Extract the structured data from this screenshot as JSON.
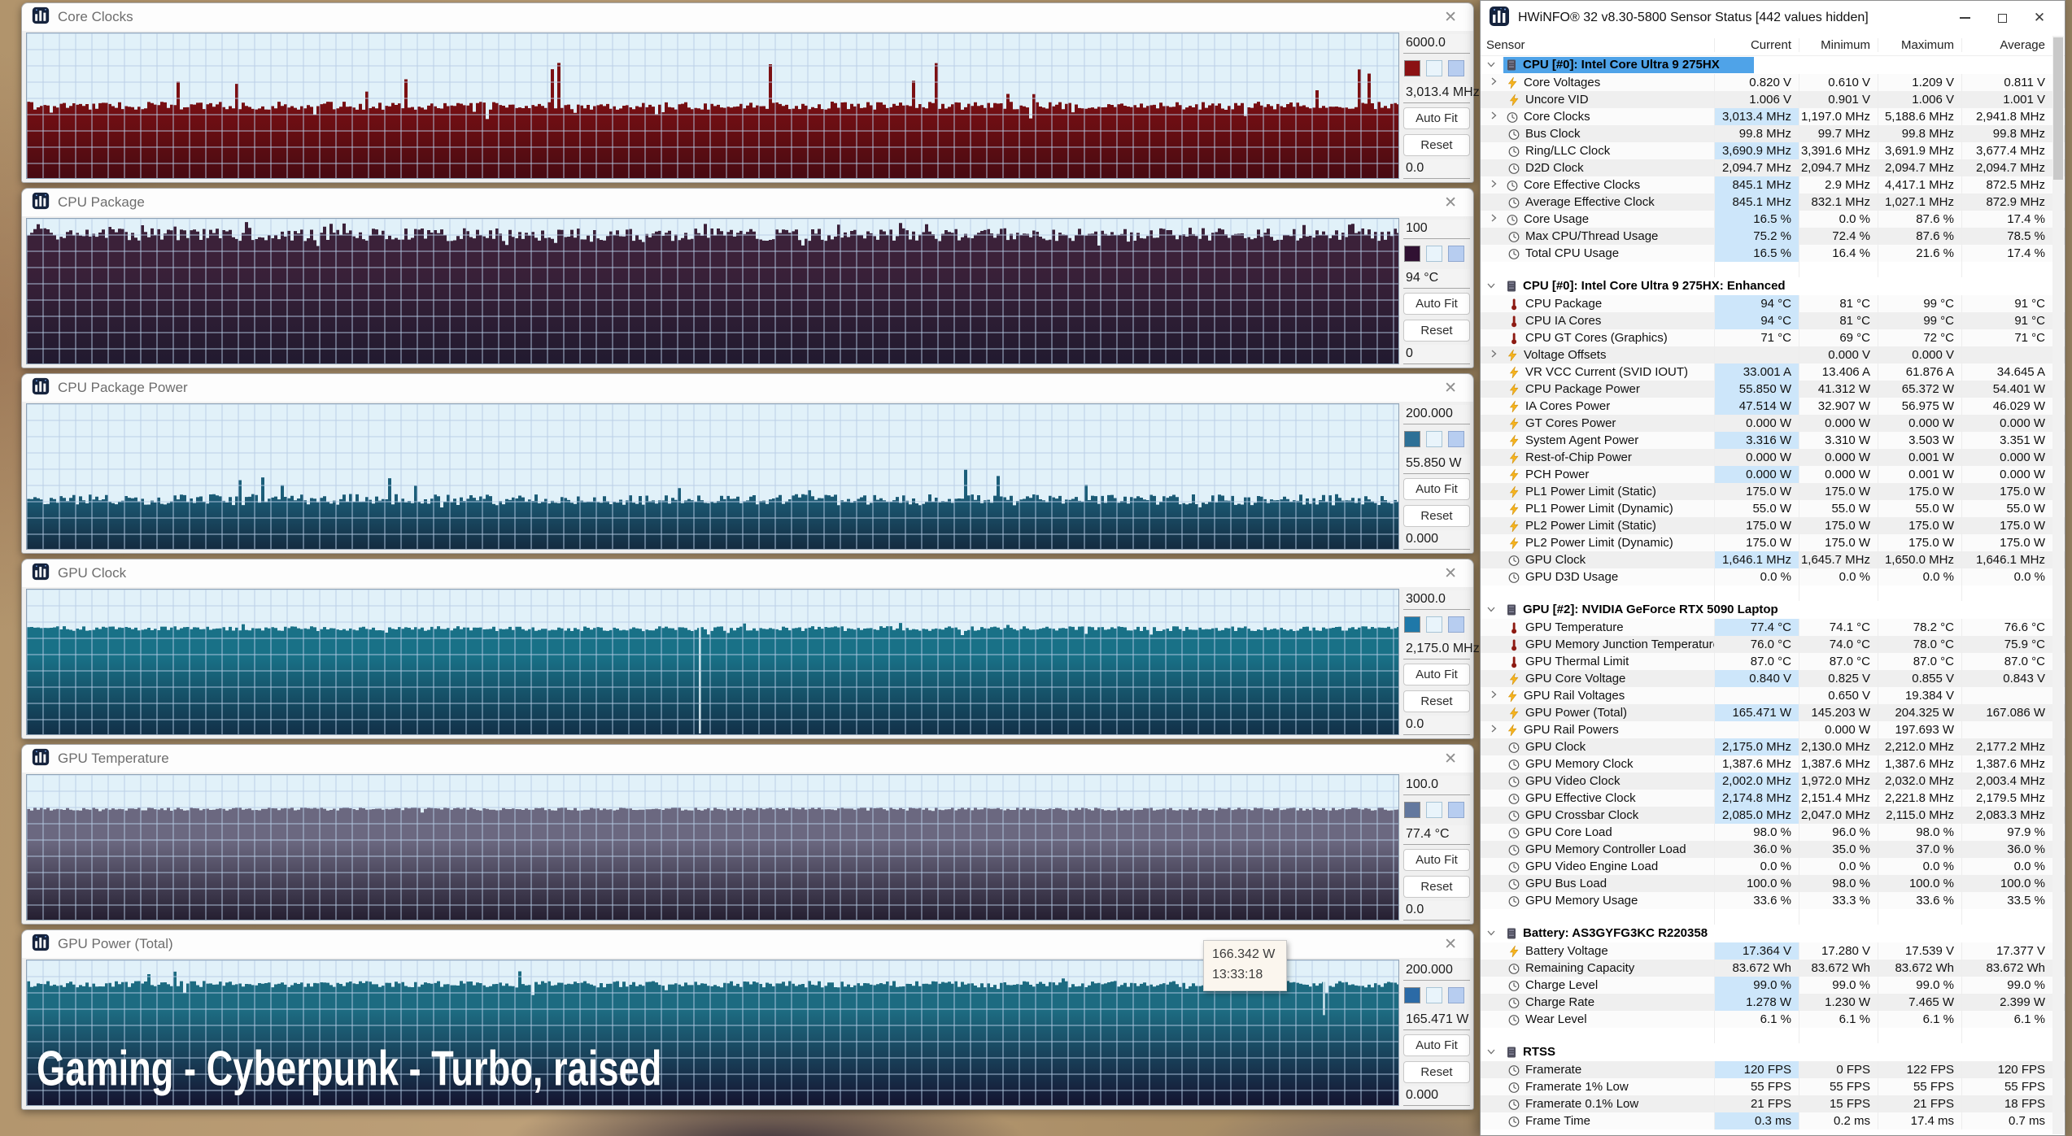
{
  "graph_style": {
    "bg": "#e1f1f9",
    "grid": "#b7cde6",
    "grid_step": 20
  },
  "panel": {
    "autofit_label": "Auto Fit",
    "reset_label": "Reset",
    "close_glyph": "✕"
  },
  "graph_windows": [
    {
      "title": "Core Clocks",
      "scale_max": "6000.0",
      "current": "3,013.4 MHz",
      "scale_min": "0.0",
      "swatch": "#8b1113",
      "fill_top": "#7c1013",
      "fill_bottom": "#470a12",
      "seed": 7,
      "level": 0.5,
      "jitter": 5,
      "spikes": {
        "count": 14,
        "min": 0.08,
        "max": 0.36
      },
      "notches": {
        "count": 10,
        "depth": 0.06
      },
      "dips": []
    },
    {
      "title": "CPU Package",
      "scale_max": "100",
      "current": "94 °C",
      "scale_min": "0",
      "swatch": "#301132",
      "fill_top": "#3b2139",
      "fill_bottom": "#211a2f",
      "seed": 13,
      "level": 0.11,
      "jitter": 8,
      "spikes": {
        "count": 26,
        "min": 0.02,
        "max": 0.09
      },
      "notches": {
        "count": 14,
        "depth": 0.05
      },
      "dips": []
    },
    {
      "title": "CPU Package Power",
      "scale_max": "200.000",
      "current": "55.850 W",
      "scale_min": "0.000",
      "swatch": "#2e7096",
      "fill_top": "#1c5f7a",
      "fill_bottom": "#142b40",
      "seed": 21,
      "level": 0.66,
      "jitter": 7,
      "spikes": {
        "count": 10,
        "min": 0.06,
        "max": 0.22
      },
      "notches": {
        "count": 4,
        "depth": 0.04
      },
      "dips": []
    },
    {
      "title": "GPU Clock",
      "scale_max": "3000.0",
      "current": "2,175.0 MHz",
      "scale_min": "0.0",
      "swatch": "#1f78a8",
      "fill_top": "#197187",
      "fill_bottom": "#123048",
      "seed": 29,
      "level": 0.27,
      "jitter": 3,
      "spikes": {
        "count": 6,
        "min": 0.01,
        "max": 0.04
      },
      "notches": {
        "count": 6,
        "depth": 0.03
      },
      "dips": [
        {
          "x": 0.49,
          "len": 0
        }
      ]
    },
    {
      "title": "GPU Temperature",
      "scale_max": "100.0",
      "current": "77.4 °C",
      "scale_min": "0.0",
      "swatch": "#63789e",
      "fill_top": "#6b6880",
      "fill_bottom": "#251f31",
      "seed": 37,
      "level": 0.235,
      "jitter": 2,
      "spikes": {
        "count": 0,
        "min": 0,
        "max": 0
      },
      "notches": {
        "count": 4,
        "depth": 0.02
      },
      "dips": []
    },
    {
      "title": "GPU Power (Total)",
      "scale_max": "200.000",
      "current": "165.471 W",
      "scale_min": "0.000",
      "swatch": "#2b6aa6",
      "fill_top": "#1d6b81",
      "fill_bottom": "#141430",
      "seed": 45,
      "level": 0.165,
      "jitter": 4,
      "spikes": {
        "count": 4,
        "min": 0.03,
        "max": 0.1
      },
      "notches": {
        "count": 6,
        "depth": 0.05
      },
      "dips": [
        {
          "x": 0.945,
          "len": 48
        }
      ],
      "overlay_text": "Gaming - Cyberpunk - Turbo, raised",
      "tooltip": {
        "value": "166.342 W",
        "time": "13:33:18"
      }
    }
  ],
  "hwinfo": {
    "title": "HWiNFO® 32 v8.30-5800 Sensor Status [442 values hidden]",
    "columns": [
      "Sensor",
      "Current",
      "Minimum",
      "Maximum",
      "Average"
    ],
    "sections": [
      {
        "name": "CPU [#0]: Intel Core Ultra 9 275HX",
        "selected": true,
        "alt_offset": 0,
        "rows": [
          {
            "label": "Core Voltages",
            "icon": "bolt",
            "expandable": true,
            "values": [
              "0.820 V",
              "0.610 V",
              "1.209 V",
              "0.811 V"
            ]
          },
          {
            "label": "Uncore VID",
            "icon": "bolt",
            "values": [
              "1.006 V",
              "0.901 V",
              "1.006 V",
              "1.001 V"
            ]
          },
          {
            "label": "Core Clocks",
            "icon": "clock",
            "expandable": true,
            "hl": true,
            "values": [
              "3,013.4 MHz",
              "1,197.0 MHz",
              "5,188.6 MHz",
              "2,941.8 MHz"
            ]
          },
          {
            "label": "Bus Clock",
            "icon": "clock",
            "values": [
              "99.8 MHz",
              "99.7 MHz",
              "99.8 MHz",
              "99.8 MHz"
            ]
          },
          {
            "label": "Ring/LLC Clock",
            "icon": "clock",
            "hl": true,
            "values": [
              "3,690.9 MHz",
              "3,391.6 MHz",
              "3,691.9 MHz",
              "3,677.4 MHz"
            ]
          },
          {
            "label": "D2D Clock",
            "icon": "clock",
            "values": [
              "2,094.7 MHz",
              "2,094.7 MHz",
              "2,094.7 MHz",
              "2,094.7 MHz"
            ]
          },
          {
            "label": "Core Effective Clocks",
            "icon": "clock",
            "expandable": true,
            "hl": true,
            "values": [
              "845.1 MHz",
              "2.9 MHz",
              "4,417.1 MHz",
              "872.5 MHz"
            ]
          },
          {
            "label": "Average Effective Clock",
            "icon": "clock",
            "hl": true,
            "values": [
              "845.1 MHz",
              "832.1 MHz",
              "1,027.1 MHz",
              "872.9 MHz"
            ]
          },
          {
            "label": "Core Usage",
            "icon": "clock",
            "expandable": true,
            "hl": true,
            "values": [
              "16.5 %",
              "0.0 %",
              "87.6 %",
              "17.4 %"
            ]
          },
          {
            "label": "Max CPU/Thread Usage",
            "icon": "clock",
            "hl": true,
            "values": [
              "75.2 %",
              "72.4 %",
              "87.6 %",
              "78.5 %"
            ]
          },
          {
            "label": "Total CPU Usage",
            "icon": "clock",
            "hl": true,
            "values": [
              "16.5 %",
              "16.4 %",
              "21.6 %",
              "17.4 %"
            ]
          }
        ]
      },
      {
        "name": "CPU [#0]: Intel Core Ultra 9 275HX: Enhanced",
        "alt_offset": 0,
        "rows": [
          {
            "label": "CPU Package",
            "icon": "temp",
            "hl": true,
            "values": [
              "94 °C",
              "81 °C",
              "99 °C",
              "91 °C"
            ]
          },
          {
            "label": "CPU IA Cores",
            "icon": "temp",
            "hl": true,
            "values": [
              "94 °C",
              "81 °C",
              "99 °C",
              "91 °C"
            ]
          },
          {
            "label": "CPU GT Cores (Graphics)",
            "icon": "temp",
            "values": [
              "71 °C",
              "69 °C",
              "72 °C",
              "71 °C"
            ]
          },
          {
            "label": "Voltage Offsets",
            "icon": "bolt",
            "expandable": true,
            "values": [
              "",
              "0.000 V",
              "0.000 V",
              ""
            ]
          },
          {
            "label": "VR VCC Current (SVID IOUT)",
            "icon": "bolt",
            "hl": true,
            "values": [
              "33.001 A",
              "13.406 A",
              "61.876 A",
              "34.645 A"
            ]
          },
          {
            "label": "CPU Package Power",
            "icon": "bolt",
            "hl": true,
            "values": [
              "55.850 W",
              "41.312 W",
              "65.372 W",
              "54.401 W"
            ]
          },
          {
            "label": "IA Cores Power",
            "icon": "bolt",
            "hl": true,
            "values": [
              "47.514 W",
              "32.907 W",
              "56.975 W",
              "46.029 W"
            ]
          },
          {
            "label": "GT Cores Power",
            "icon": "bolt",
            "values": [
              "0.000 W",
              "0.000 W",
              "0.000 W",
              "0.000 W"
            ]
          },
          {
            "label": "System Agent Power",
            "icon": "bolt",
            "hl": true,
            "values": [
              "3.316 W",
              "3.310 W",
              "3.503 W",
              "3.351 W"
            ]
          },
          {
            "label": "Rest-of-Chip Power",
            "icon": "bolt",
            "values": [
              "0.000 W",
              "0.000 W",
              "0.001 W",
              "0.000 W"
            ]
          },
          {
            "label": "PCH Power",
            "icon": "bolt",
            "hl": true,
            "values": [
              "0.000 W",
              "0.000 W",
              "0.001 W",
              "0.000 W"
            ]
          },
          {
            "label": "PL1 Power Limit (Static)",
            "icon": "bolt",
            "values": [
              "175.0 W",
              "175.0 W",
              "175.0 W",
              "175.0 W"
            ]
          },
          {
            "label": "PL1 Power Limit (Dynamic)",
            "icon": "bolt",
            "values": [
              "55.0 W",
              "55.0 W",
              "55.0 W",
              "55.0 W"
            ]
          },
          {
            "label": "PL2 Power Limit (Static)",
            "icon": "bolt",
            "values": [
              "175.0 W",
              "175.0 W",
              "175.0 W",
              "175.0 W"
            ]
          },
          {
            "label": "PL2 Power Limit (Dynamic)",
            "icon": "bolt",
            "values": [
              "175.0 W",
              "175.0 W",
              "175.0 W",
              "175.0 W"
            ]
          },
          {
            "label": "GPU Clock",
            "icon": "clock",
            "hl": true,
            "values": [
              "1,646.1 MHz",
              "1,645.7 MHz",
              "1,650.0 MHz",
              "1,646.1 MHz"
            ]
          },
          {
            "label": "GPU D3D Usage",
            "icon": "clock",
            "values": [
              "0.0 %",
              "0.0 %",
              "0.0 %",
              "0.0 %"
            ]
          }
        ]
      },
      {
        "name": "GPU [#2]: NVIDIA GeForce RTX 5090 Laptop",
        "alt_offset": 0,
        "rows": [
          {
            "label": "GPU Temperature",
            "icon": "temp",
            "hl": true,
            "values": [
              "77.4 °C",
              "74.1 °C",
              "78.2 °C",
              "76.6 °C"
            ]
          },
          {
            "label": "GPU Memory Junction Temperature",
            "icon": "temp",
            "values": [
              "76.0 °C",
              "74.0 °C",
              "78.0 °C",
              "75.9 °C"
            ]
          },
          {
            "label": "GPU Thermal Limit",
            "icon": "temp",
            "values": [
              "87.0 °C",
              "87.0 °C",
              "87.0 °C",
              "87.0 °C"
            ]
          },
          {
            "label": "GPU Core Voltage",
            "icon": "bolt",
            "hl": true,
            "values": [
              "0.840 V",
              "0.825 V",
              "0.855 V",
              "0.843 V"
            ]
          },
          {
            "label": "GPU Rail Voltages",
            "icon": "bolt",
            "expandable": true,
            "values": [
              "",
              "0.650 V",
              "19.384 V",
              ""
            ]
          },
          {
            "label": "GPU Power (Total)",
            "icon": "bolt",
            "hl": true,
            "values": [
              "165.471 W",
              "145.203 W",
              "204.325 W",
              "167.086 W"
            ]
          },
          {
            "label": "GPU Rail Powers",
            "icon": "bolt",
            "expandable": true,
            "values": [
              "",
              "0.000 W",
              "197.693 W",
              ""
            ]
          },
          {
            "label": "GPU Clock",
            "icon": "clock",
            "hl": true,
            "values": [
              "2,175.0 MHz",
              "2,130.0 MHz",
              "2,212.0 MHz",
              "2,177.2 MHz"
            ]
          },
          {
            "label": "GPU Memory Clock",
            "icon": "clock",
            "values": [
              "1,387.6 MHz",
              "1,387.6 MHz",
              "1,387.6 MHz",
              "1,387.6 MHz"
            ]
          },
          {
            "label": "GPU Video Clock",
            "icon": "clock",
            "hl": true,
            "values": [
              "2,002.0 MHz",
              "1,972.0 MHz",
              "2,032.0 MHz",
              "2,003.4 MHz"
            ]
          },
          {
            "label": "GPU Effective Clock",
            "icon": "clock",
            "hl": true,
            "values": [
              "2,174.8 MHz",
              "2,151.4 MHz",
              "2,221.8 MHz",
              "2,179.5 MHz"
            ]
          },
          {
            "label": "GPU Crossbar Clock",
            "icon": "clock",
            "hl": true,
            "values": [
              "2,085.0 MHz",
              "2,047.0 MHz",
              "2,115.0 MHz",
              "2,083.3 MHz"
            ]
          },
          {
            "label": "GPU Core Load",
            "icon": "clock",
            "values": [
              "98.0 %",
              "96.0 %",
              "98.0 %",
              "97.9 %"
            ]
          },
          {
            "label": "GPU Memory Controller Load",
            "icon": "clock",
            "values": [
              "36.0 %",
              "35.0 %",
              "37.0 %",
              "36.0 %"
            ]
          },
          {
            "label": "GPU Video Engine Load",
            "icon": "clock",
            "values": [
              "0.0 %",
              "0.0 %",
              "0.0 %",
              "0.0 %"
            ]
          },
          {
            "label": "GPU Bus Load",
            "icon": "clock",
            "values": [
              "100.0 %",
              "98.0 %",
              "100.0 %",
              "100.0 %"
            ]
          },
          {
            "label": "GPU Memory Usage",
            "icon": "clock",
            "values": [
              "33.6 %",
              "33.3 %",
              "33.6 %",
              "33.5 %"
            ]
          }
        ]
      },
      {
        "name": "Battery: AS3GYFG3KC R220358",
        "alt_offset": 0,
        "rows": [
          {
            "label": "Battery Voltage",
            "icon": "bolt",
            "hl": true,
            "values": [
              "17.364 V",
              "17.280 V",
              "17.539 V",
              "17.377 V"
            ]
          },
          {
            "label": "Remaining Capacity",
            "icon": "clock",
            "values": [
              "83.672 Wh",
              "83.672 Wh",
              "83.672 Wh",
              "83.672 Wh"
            ]
          },
          {
            "label": "Charge Level",
            "icon": "clock",
            "hl": true,
            "values": [
              "99.0 %",
              "99.0 %",
              "99.0 %",
              "99.0 %"
            ]
          },
          {
            "label": "Charge Rate",
            "icon": "clock",
            "hl": true,
            "values": [
              "1.278 W",
              "1.230 W",
              "7.465 W",
              "2.399 W"
            ]
          },
          {
            "label": "Wear Level",
            "icon": "clock",
            "values": [
              "6.1 %",
              "6.1 %",
              "6.1 %",
              "6.1 %"
            ]
          }
        ]
      },
      {
        "name": "RTSS",
        "alt_offset": 1,
        "rows": [
          {
            "label": "Framerate",
            "icon": "clock",
            "hl": true,
            "values": [
              "120 FPS",
              "0 FPS",
              "122 FPS",
              "120 FPS"
            ]
          },
          {
            "label": "Framerate 1% Low",
            "icon": "clock",
            "values": [
              "55 FPS",
              "55 FPS",
              "55 FPS",
              "55 FPS"
            ]
          },
          {
            "label": "Framerate 0.1% Low",
            "icon": "clock",
            "values": [
              "21 FPS",
              "15 FPS",
              "21 FPS",
              "18 FPS"
            ]
          },
          {
            "label": "Frame Time",
            "icon": "clock",
            "hl": true,
            "values": [
              "0.3 ms",
              "0.2 ms",
              "17.4 ms",
              "0.7 ms"
            ]
          }
        ]
      }
    ]
  }
}
